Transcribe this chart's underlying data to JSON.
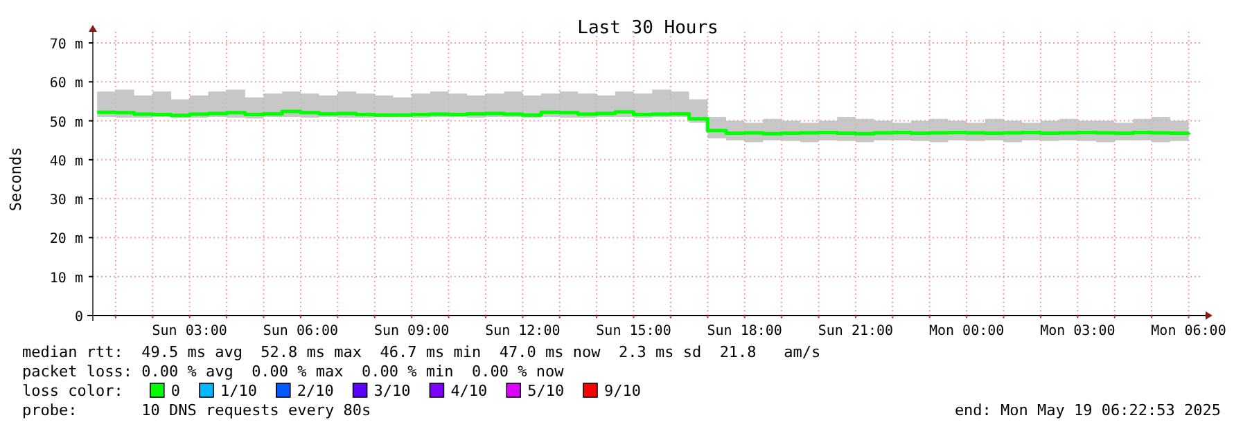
{
  "chart_data": {
    "type": "step",
    "title": "Last 30 Hours",
    "ylabel": "Seconds",
    "legend": "bottom",
    "legend_title": "loss color:",
    "grid": true,
    "x": [
      "2025-05-18T00:30",
      "2025-05-18T01:00",
      "2025-05-18T01:30",
      "2025-05-18T02:00",
      "2025-05-18T02:30",
      "2025-05-18T03:00",
      "2025-05-18T03:30",
      "2025-05-18T04:00",
      "2025-05-18T04:30",
      "2025-05-18T05:00",
      "2025-05-18T05:30",
      "2025-05-18T06:00",
      "2025-05-18T06:30",
      "2025-05-18T07:00",
      "2025-05-18T07:30",
      "2025-05-18T08:00",
      "2025-05-18T08:30",
      "2025-05-18T09:00",
      "2025-05-18T09:30",
      "2025-05-18T10:00",
      "2025-05-18T10:30",
      "2025-05-18T11:00",
      "2025-05-18T11:30",
      "2025-05-18T12:00",
      "2025-05-18T12:30",
      "2025-05-18T13:00",
      "2025-05-18T13:30",
      "2025-05-18T14:00",
      "2025-05-18T14:30",
      "2025-05-18T15:00",
      "2025-05-18T15:30",
      "2025-05-18T16:00",
      "2025-05-18T16:30",
      "2025-05-18T17:00",
      "2025-05-18T17:30",
      "2025-05-18T18:00",
      "2025-05-18T18:30",
      "2025-05-18T19:00",
      "2025-05-18T19:30",
      "2025-05-18T20:00",
      "2025-05-18T20:30",
      "2025-05-18T21:00",
      "2025-05-18T21:30",
      "2025-05-18T22:00",
      "2025-05-18T22:30",
      "2025-05-18T23:00",
      "2025-05-18T23:30",
      "2025-05-19T00:00",
      "2025-05-19T00:30",
      "2025-05-19T01:00",
      "2025-05-19T01:30",
      "2025-05-19T02:00",
      "2025-05-19T02:30",
      "2025-05-19T03:00",
      "2025-05-19T03:30",
      "2025-05-19T04:00",
      "2025-05-19T04:30",
      "2025-05-19T05:00",
      "2025-05-19T05:30",
      "2025-05-19T06:00"
    ],
    "xlim": [
      "2025-05-18T00:23",
      "2025-05-19T06:23"
    ],
    "xticks": [
      {
        "value": "2025-05-18T01:00",
        "label": null
      },
      {
        "value": "2025-05-18T02:00",
        "label": null
      },
      {
        "value": "2025-05-18T03:00",
        "label": "Sun 03:00"
      },
      {
        "value": "2025-05-18T04:00",
        "label": null
      },
      {
        "value": "2025-05-18T05:00",
        "label": null
      },
      {
        "value": "2025-05-18T06:00",
        "label": "Sun 06:00"
      },
      {
        "value": "2025-05-18T07:00",
        "label": null
      },
      {
        "value": "2025-05-18T08:00",
        "label": null
      },
      {
        "value": "2025-05-18T09:00",
        "label": "Sun 09:00"
      },
      {
        "value": "2025-05-18T10:00",
        "label": null
      },
      {
        "value": "2025-05-18T11:00",
        "label": null
      },
      {
        "value": "2025-05-18T12:00",
        "label": "Sun 12:00"
      },
      {
        "value": "2025-05-18T13:00",
        "label": null
      },
      {
        "value": "2025-05-18T14:00",
        "label": null
      },
      {
        "value": "2025-05-18T15:00",
        "label": "Sun 15:00"
      },
      {
        "value": "2025-05-18T16:00",
        "label": null
      },
      {
        "value": "2025-05-18T17:00",
        "label": null
      },
      {
        "value": "2025-05-18T18:00",
        "label": "Sun 18:00"
      },
      {
        "value": "2025-05-18T19:00",
        "label": null
      },
      {
        "value": "2025-05-18T20:00",
        "label": null
      },
      {
        "value": "2025-05-18T21:00",
        "label": "Sun 21:00"
      },
      {
        "value": "2025-05-18T22:00",
        "label": null
      },
      {
        "value": "2025-05-18T23:00",
        "label": null
      },
      {
        "value": "2025-05-19T00:00",
        "label": "Mon 00:00"
      },
      {
        "value": "2025-05-19T01:00",
        "label": null
      },
      {
        "value": "2025-05-19T02:00",
        "label": null
      },
      {
        "value": "2025-05-19T03:00",
        "label": "Mon 03:00"
      },
      {
        "value": "2025-05-19T04:00",
        "label": null
      },
      {
        "value": "2025-05-19T05:00",
        "label": null
      },
      {
        "value": "2025-05-19T06:00",
        "label": "Mon 06:00"
      }
    ],
    "ylim": [
      0,
      70
    ],
    "yticks": [
      0,
      {
        "value": 10,
        "label": "10 m"
      },
      {
        "value": 20,
        "label": "20 m"
      },
      {
        "value": 30,
        "label": "30 m"
      },
      {
        "value": 40,
        "label": "40 m"
      },
      {
        "value": 50,
        "label": "50 m"
      },
      {
        "value": 60,
        "label": "60 m"
      },
      {
        "value": 70,
        "label": "70 m"
      }
    ],
    "series": [
      {
        "name": "0",
        "color": "#00ff00",
        "values": [
          52.2,
          52.1,
          51.7,
          51.6,
          51.4,
          51.7,
          51.9,
          52.1,
          51.6,
          51.8,
          52.4,
          52.1,
          51.8,
          51.9,
          51.6,
          51.5,
          51.5,
          51.6,
          51.7,
          51.6,
          51.8,
          51.9,
          51.7,
          51.5,
          52.2,
          52.1,
          51.7,
          51.9,
          52.3,
          51.6,
          51.7,
          51.8,
          50.5,
          47.5,
          46.8,
          46.9,
          46.7,
          46.8,
          46.9,
          47,
          46.8,
          46.7,
          46.9,
          47,
          46.8,
          46.9,
          47,
          46.9,
          46.8,
          46.9,
          47,
          46.8,
          46.9,
          47,
          46.9,
          46.8,
          47,
          46.9,
          46.8,
          47
        ],
        "upper": [
          57.5,
          58,
          56.5,
          57.5,
          55.5,
          56.5,
          57.5,
          58,
          56,
          57,
          57.5,
          57,
          56.5,
          57.5,
          57,
          56.5,
          56,
          57,
          57.5,
          57,
          56.5,
          57,
          57.5,
          56.5,
          57,
          57.5,
          57,
          56.5,
          57.5,
          57,
          58,
          57.5,
          55.5,
          51,
          50,
          49.5,
          50.5,
          50,
          49.5,
          50,
          51,
          50.5,
          50,
          49.5,
          50,
          50.5,
          50,
          49.5,
          50.5,
          50,
          49.5,
          50,
          50.5,
          50,
          50,
          49.5,
          50.5,
          51,
          50,
          50
        ],
        "lower": [
          51,
          50.8,
          50.8,
          51,
          50.8,
          50.8,
          51,
          50.8,
          50.6,
          51,
          51,
          50.8,
          51,
          50.8,
          50.8,
          51,
          51,
          50.8,
          51,
          51,
          50.8,
          51,
          51,
          50.8,
          51,
          50.8,
          50.8,
          51,
          51,
          50.8,
          51,
          51,
          49.5,
          45.5,
          45,
          44.5,
          45,
          44.8,
          44.5,
          45,
          44.8,
          44.5,
          45,
          45,
          44.8,
          44.5,
          45,
          44.8,
          45,
          44.5,
          45,
          44.8,
          45,
          44.8,
          44.5,
          45,
          45,
          44.5,
          44.8,
          45
        ]
      },
      {
        "name": "1/10",
        "color": "#00b8ff",
        "values": [
          null,
          null,
          null,
          null,
          null,
          null,
          null,
          null,
          null,
          null,
          null,
          null,
          null,
          null,
          null,
          null,
          null,
          null,
          null,
          null,
          null,
          null,
          null,
          null,
          null,
          null,
          null,
          null,
          null,
          null,
          null,
          null,
          null,
          null,
          null,
          null,
          null,
          null,
          null,
          null,
          null,
          null,
          null,
          null,
          null,
          null,
          null,
          null,
          null,
          null,
          null,
          null,
          null,
          null,
          null,
          null,
          null,
          null,
          null,
          null
        ]
      },
      {
        "name": "2/10",
        "color": "#0059ff",
        "values": [
          null,
          null,
          null,
          null,
          null,
          null,
          null,
          null,
          null,
          null,
          null,
          null,
          null,
          null,
          null,
          null,
          null,
          null,
          null,
          null,
          null,
          null,
          null,
          null,
          null,
          null,
          null,
          null,
          null,
          null,
          null,
          null,
          null,
          null,
          null,
          null,
          null,
          null,
          null,
          null,
          null,
          null,
          null,
          null,
          null,
          null,
          null,
          null,
          null,
          null,
          null,
          null,
          null,
          null,
          null,
          null,
          null,
          null,
          null,
          null
        ]
      },
      {
        "name": "3/10",
        "color": "#5e00ff",
        "values": [
          null,
          null,
          null,
          null,
          null,
          null,
          null,
          null,
          null,
          null,
          null,
          null,
          null,
          null,
          null,
          null,
          null,
          null,
          null,
          null,
          null,
          null,
          null,
          null,
          null,
          null,
          null,
          null,
          null,
          null,
          null,
          null,
          null,
          null,
          null,
          null,
          null,
          null,
          null,
          null,
          null,
          null,
          null,
          null,
          null,
          null,
          null,
          null,
          null,
          null,
          null,
          null,
          null,
          null,
          null,
          null,
          null,
          null,
          null,
          null
        ]
      },
      {
        "name": "4/10",
        "color": "#7e00ff",
        "values": [
          null,
          null,
          null,
          null,
          null,
          null,
          null,
          null,
          null,
          null,
          null,
          null,
          null,
          null,
          null,
          null,
          null,
          null,
          null,
          null,
          null,
          null,
          null,
          null,
          null,
          null,
          null,
          null,
          null,
          null,
          null,
          null,
          null,
          null,
          null,
          null,
          null,
          null,
          null,
          null,
          null,
          null,
          null,
          null,
          null,
          null,
          null,
          null,
          null,
          null,
          null,
          null,
          null,
          null,
          null,
          null,
          null,
          null,
          null,
          null
        ]
      },
      {
        "name": "5/10",
        "color": "#dd00ff",
        "values": [
          null,
          null,
          null,
          null,
          null,
          null,
          null,
          null,
          null,
          null,
          null,
          null,
          null,
          null,
          null,
          null,
          null,
          null,
          null,
          null,
          null,
          null,
          null,
          null,
          null,
          null,
          null,
          null,
          null,
          null,
          null,
          null,
          null,
          null,
          null,
          null,
          null,
          null,
          null,
          null,
          null,
          null,
          null,
          null,
          null,
          null,
          null,
          null,
          null,
          null,
          null,
          null,
          null,
          null,
          null,
          null,
          null,
          null,
          null,
          null
        ]
      },
      {
        "name": "9/10",
        "color": "#ff0000",
        "values": [
          null,
          null,
          null,
          null,
          null,
          null,
          null,
          null,
          null,
          null,
          null,
          null,
          null,
          null,
          null,
          null,
          null,
          null,
          null,
          null,
          null,
          null,
          null,
          null,
          null,
          null,
          null,
          null,
          null,
          null,
          null,
          null,
          null,
          null,
          null,
          null,
          null,
          null,
          null,
          null,
          null,
          null,
          null,
          null,
          null,
          null,
          null,
          null,
          null,
          null,
          null,
          null,
          null,
          null,
          null,
          null,
          null,
          null,
          null,
          null
        ]
      }
    ],
    "annotations": [
      "median rtt:  49.5 ms avg  52.8 ms max  46.7 ms min  47.0 ms now  2.3 ms sd  21.8   am/s",
      "packet loss: 0.00 % avg  0.00 % max  0.00 % min  0.00 % now",
      "probe:       10 DNS requests every 80s",
      "end: Mon May 19 06:22:53 2025"
    ]
  }
}
